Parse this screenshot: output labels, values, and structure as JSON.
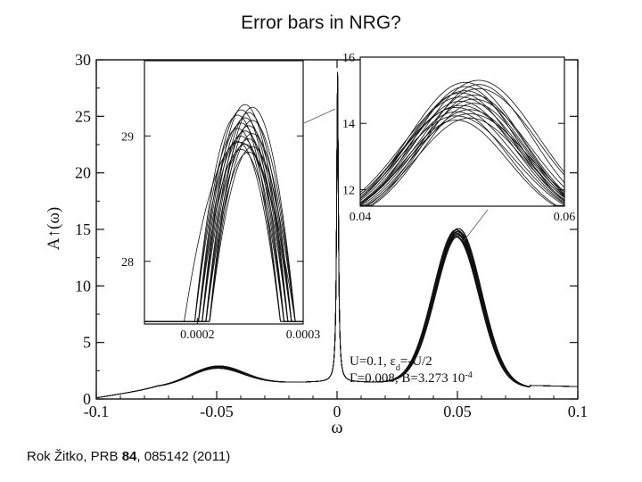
{
  "slide": {
    "title": "Error bars in NRG?",
    "citation_prefix": "Rok Žitko, PRB ",
    "citation_volume": "84",
    "citation_suffix": ", 085142 (2011)"
  },
  "chart_data": [
    {
      "type": "line",
      "name": "main-spectral-function",
      "title": "",
      "xlabel": "ω",
      "ylabel": "A↑(ω)",
      "xlim": [
        -0.1,
        0.1
      ],
      "ylim": [
        0,
        30
      ],
      "xticks": [
        "-0.1",
        "-0.05",
        "0",
        "0.05",
        "0.1"
      ],
      "yticks": [
        "0",
        "5",
        "10",
        "15",
        "20",
        "25",
        "30"
      ],
      "annotation_line1_a": "U=0.1, ε",
      "annotation_line1_sub": "d",
      "annotation_line1_b": "=-U/2",
      "annotation_line2_a": "Γ=0.008, B=3.273 10",
      "annotation_line2_sup": "-4",
      "features": {
        "baseline": 1.5,
        "lower_hubbard_peak": {
          "x": -0.05,
          "height": 3.0
        },
        "kondo_peak": {
          "x": 0.0,
          "height": 29
        },
        "upper_hubbard_peak": {
          "x": 0.05,
          "height": 15.2
        },
        "value_at_x_-0.1": 0.4,
        "value_at_x_0.1": 1.1
      },
      "n_curves": 20
    },
    {
      "type": "line",
      "name": "inset-left-zoom",
      "xlim": [
        0.00015,
        0.0003
      ],
      "ylim": [
        27.5,
        29.6
      ],
      "xticks": [
        "0.0002",
        "0.0003"
      ],
      "yticks": [
        "28",
        "29"
      ],
      "peak_x": 0.000245,
      "peak_y_range": [
        28.85,
        29.25
      ],
      "n_curves": 20
    },
    {
      "type": "line",
      "name": "inset-right-zoom",
      "xlim": [
        0.04,
        0.06
      ],
      "ylim": [
        11.5,
        16
      ],
      "xticks": [
        "0.04",
        "0.06"
      ],
      "yticks": [
        "12",
        "14",
        "16"
      ],
      "peak_x": 0.0505,
      "peak_y_range": [
        14.1,
        15.3
      ],
      "n_curves": 20
    }
  ]
}
